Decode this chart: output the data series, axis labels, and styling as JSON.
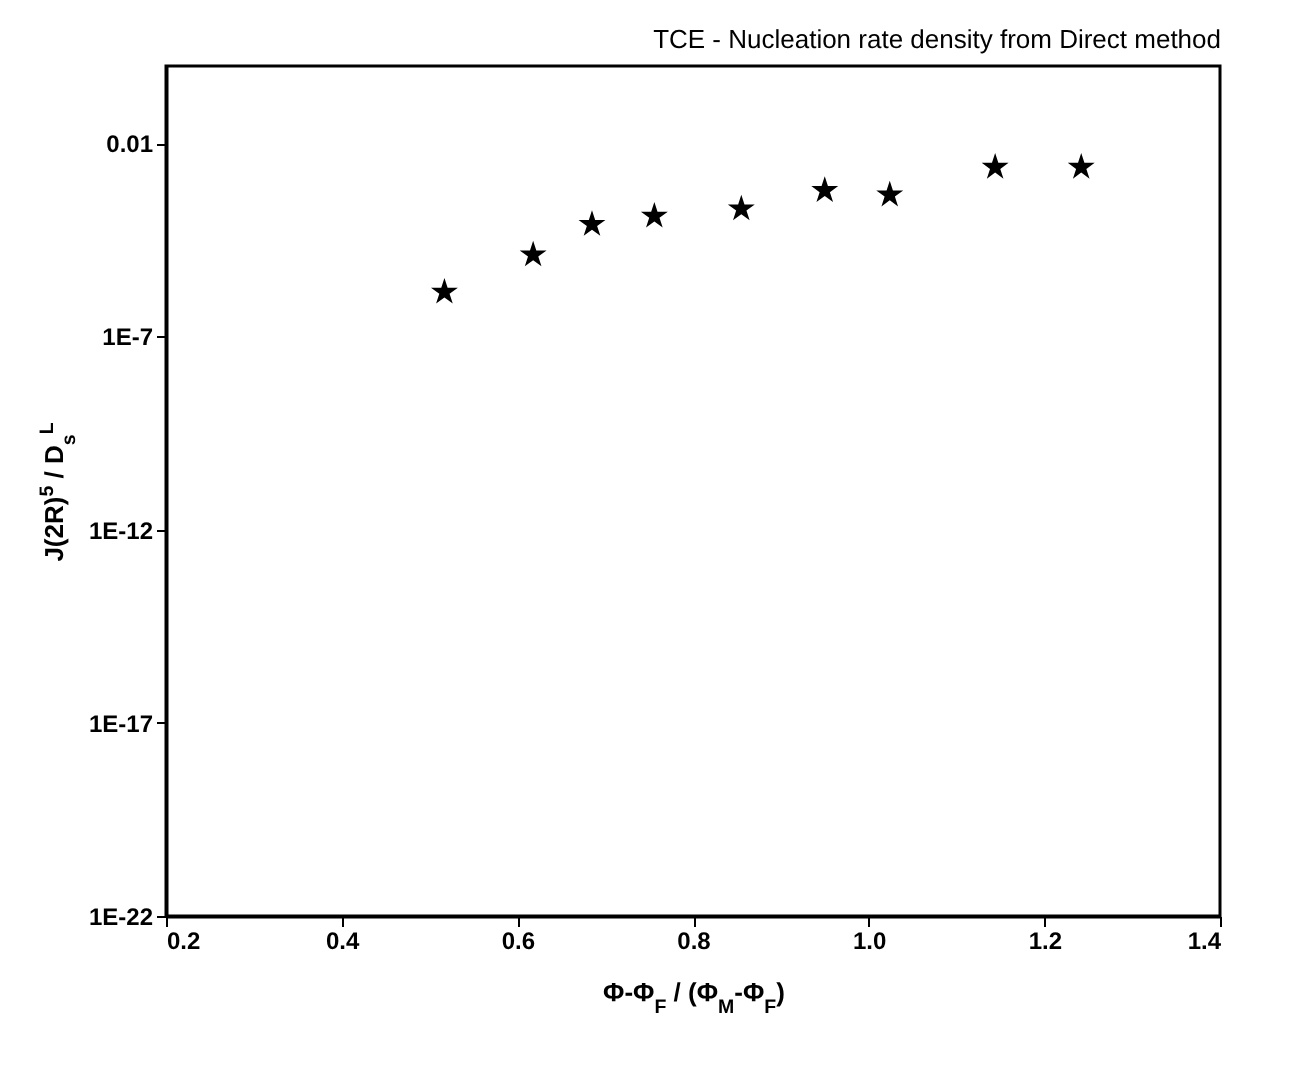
{
  "chart_data": {
    "type": "scatter",
    "title": "TCE - Nucleation rate density from Direct method",
    "xlabel": "Φ-Φ$_{F}$ / (Φ$_{M}$-Φ$_{F}$)",
    "ylabel": "J(2R)$^{5}$ / D$_{s}$$^{L}$",
    "x": [
      0.517,
      0.618,
      0.685,
      0.756,
      0.855,
      0.95,
      1.024,
      1.144,
      1.242
    ],
    "series": [
      {
        "color": "#000000",
        "values": [
          1.4e-06,
          1.3e-05,
          8e-05,
          0.00013,
          0.0002,
          0.0006,
          0.00046,
          0.0024,
          0.0024
        ]
      }
    ],
    "xlim": [
      0.2,
      1.4
    ],
    "xticks": [
      0.2,
      0.4,
      0.6,
      0.8,
      {
        "value": 1,
        "label": "1.0"
      },
      1.2,
      1.4
    ],
    "ylim": [
      1e-22,
      1
    ],
    "yticks": [
      {
        "value": 1e-22,
        "label": "1E-22"
      },
      {
        "value": 1e-17,
        "label": "1E-17"
      },
      {
        "value": 1e-12,
        "label": "1E-12"
      },
      {
        "value": 1e-07,
        "label": "1E-7"
      },
      {
        "value": 0.01,
        "label": "0.01"
      }
    ],
    "log": "y",
    "grid": false,
    "marker": "star"
  }
}
